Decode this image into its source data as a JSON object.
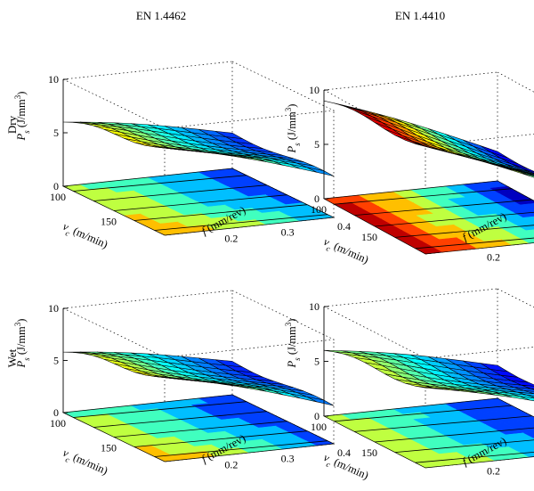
{
  "column_titles": [
    "EN 1.4462",
    "EN 1.4410"
  ],
  "row_labels": [
    "Dry",
    "Wet"
  ],
  "axes": {
    "z_label_italic": "P",
    "z_label_sub": "s",
    "z_label_units": " (J/mm",
    "z_label_sup": "3",
    "z_label_close": ")",
    "x_label_italic": "v",
    "x_label_sub": "c",
    "x_label_units": " (m/min)",
    "y_label_italic": "f",
    "y_label_units": " (mm/rev)",
    "z_ticks": [
      "0",
      "5",
      "10"
    ],
    "x_ticks": [
      "100",
      "150"
    ],
    "y_ticks": [
      "0.2",
      "0.3",
      "0.4"
    ]
  },
  "chart_data": [
    {
      "type": "surface",
      "title": "EN 1.4462",
      "row": "Dry",
      "xlabel": "vc (m/min)",
      "ylabel": "f (mm/rev)",
      "zlabel": "Ps (J/mm3)",
      "xlim": [
        100,
        200
      ],
      "ylim": [
        0.1,
        0.4
      ],
      "zlim": [
        0,
        10
      ],
      "colormap": "jet",
      "surface_corners": {
        "v100_f0.1": 6.0,
        "v200_f0.1": 8.3,
        "v100_f0.4": 3.3,
        "v200_f0.4": 3.8
      },
      "contour_projection": true
    },
    {
      "type": "surface",
      "title": "EN 1.4410",
      "row": "Dry",
      "xlabel": "vc (m/min)",
      "ylabel": "f (mm/rev)",
      "zlabel": "Ps (J/mm3)",
      "xlim": [
        100,
        200
      ],
      "ylim": [
        0.1,
        0.4
      ],
      "zlim": [
        0,
        10
      ],
      "colormap": "jet",
      "surface_corners": {
        "v100_f0.1": 9.0,
        "v200_f0.1": 10.0,
        "v100_f0.4": 2.7,
        "v200_f0.4": 3.2
      },
      "contour_projection": true
    },
    {
      "type": "surface",
      "title": "EN 1.4462",
      "row": "Wet",
      "xlabel": "vc (m/min)",
      "ylabel": "f (mm/rev)",
      "zlabel": "Ps (J/mm3)",
      "xlim": [
        100,
        200
      ],
      "ylim": [
        0.1,
        0.4
      ],
      "zlim": [
        0,
        10
      ],
      "colormap": "jet",
      "surface_corners": {
        "v100_f0.1": 5.8,
        "v200_f0.1": 8.2,
        "v100_f0.4": 3.2,
        "v200_f0.4": 3.6
      },
      "contour_projection": true
    },
    {
      "type": "surface",
      "title": "EN 1.4410",
      "row": "Wet",
      "xlabel": "vc (m/min)",
      "ylabel": "f (mm/rev)",
      "zlabel": "Ps (J/mm3)",
      "xlim": [
        100,
        200
      ],
      "ylim": [
        0.1,
        0.4
      ],
      "zlim": [
        0,
        10
      ],
      "colormap": "jet",
      "surface_corners": {
        "v100_f0.1": 6.0,
        "v200_f0.1": 7.4,
        "v100_f0.4": 3.0,
        "v200_f0.4": 3.3
      },
      "contour_projection": true
    }
  ]
}
